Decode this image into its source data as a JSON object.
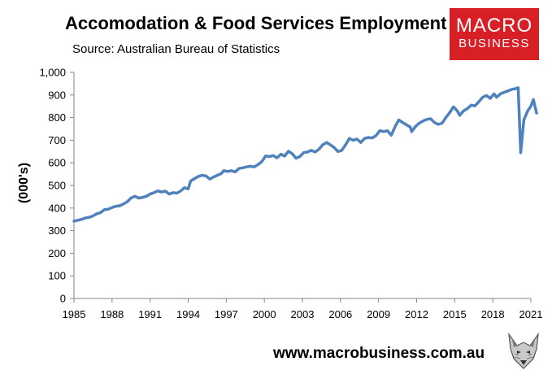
{
  "header": {
    "title": "Accomodation & Food Services Employment",
    "source": "Source: Australian Bureau of Statistics"
  },
  "logo": {
    "line1": "MACRO",
    "line2": "BUSINESS",
    "color": "#d81f26"
  },
  "footer": {
    "website": "www.macrobusiness.com.au"
  },
  "colors": {
    "series": "#4f81bd",
    "axis": "#868686"
  },
  "icons": {
    "wolf": "wolf-icon"
  },
  "chart_data": {
    "type": "line",
    "title": "Accomodation & Food Services Employment",
    "ylabel": "(000's)",
    "xlabel": "",
    "xlim": [
      1985,
      2021
    ],
    "ylim": [
      0,
      1000
    ],
    "grid": false,
    "legend": "none",
    "x_ticks": [
      "1985",
      "1988",
      "1991",
      "1994",
      "1997",
      "2000",
      "2003",
      "2006",
      "2009",
      "2012",
      "2015",
      "2018",
      "2021"
    ],
    "y_ticks": [
      "0",
      "100",
      "200",
      "300",
      "400",
      "500",
      "600",
      "700",
      "800",
      "900",
      "1,000"
    ],
    "series": [
      {
        "color": "#4f81bd",
        "points": [
          [
            1985.0,
            342
          ],
          [
            1985.3,
            346
          ],
          [
            1985.6,
            350
          ],
          [
            1985.9,
            356
          ],
          [
            1986.2,
            359
          ],
          [
            1986.5,
            365
          ],
          [
            1986.8,
            375
          ],
          [
            1987.1,
            380
          ],
          [
            1987.4,
            393
          ],
          [
            1987.7,
            395
          ],
          [
            1988.0,
            402
          ],
          [
            1988.3,
            408
          ],
          [
            1988.6,
            410
          ],
          [
            1988.9,
            418
          ],
          [
            1989.2,
            428
          ],
          [
            1989.5,
            445
          ],
          [
            1989.8,
            452
          ],
          [
            1990.1,
            444
          ],
          [
            1990.4,
            447
          ],
          [
            1990.7,
            452
          ],
          [
            1991.0,
            462
          ],
          [
            1991.3,
            468
          ],
          [
            1991.6,
            476
          ],
          [
            1991.9,
            471
          ],
          [
            1992.2,
            475
          ],
          [
            1992.5,
            462
          ],
          [
            1992.8,
            468
          ],
          [
            1993.1,
            466
          ],
          [
            1993.4,
            475
          ],
          [
            1993.7,
            490
          ],
          [
            1994.0,
            485
          ],
          [
            1994.2,
            520
          ],
          [
            1994.5,
            530
          ],
          [
            1994.8,
            540
          ],
          [
            1995.1,
            545
          ],
          [
            1995.4,
            542
          ],
          [
            1995.7,
            528
          ],
          [
            1996.0,
            537
          ],
          [
            1996.3,
            545
          ],
          [
            1996.6,
            552
          ],
          [
            1996.8,
            565
          ],
          [
            1997.1,
            562
          ],
          [
            1997.4,
            565
          ],
          [
            1997.7,
            560
          ],
          [
            1998.0,
            575
          ],
          [
            1998.3,
            578
          ],
          [
            1998.6,
            582
          ],
          [
            1998.9,
            585
          ],
          [
            1999.2,
            582
          ],
          [
            1999.5,
            592
          ],
          [
            1999.8,
            605
          ],
          [
            2000.1,
            630
          ],
          [
            2000.4,
            628
          ],
          [
            2000.7,
            632
          ],
          [
            2001.0,
            622
          ],
          [
            2001.3,
            638
          ],
          [
            2001.6,
            630
          ],
          [
            2001.9,
            651
          ],
          [
            2002.2,
            640
          ],
          [
            2002.5,
            620
          ],
          [
            2002.8,
            628
          ],
          [
            2003.1,
            645
          ],
          [
            2003.4,
            648
          ],
          [
            2003.7,
            655
          ],
          [
            2004.0,
            648
          ],
          [
            2004.3,
            660
          ],
          [
            2004.6,
            680
          ],
          [
            2004.9,
            690
          ],
          [
            2005.2,
            680
          ],
          [
            2005.5,
            668
          ],
          [
            2005.8,
            650
          ],
          [
            2006.1,
            655
          ],
          [
            2006.4,
            680
          ],
          [
            2006.7,
            708
          ],
          [
            2007.0,
            700
          ],
          [
            2007.3,
            705
          ],
          [
            2007.6,
            690
          ],
          [
            2007.9,
            708
          ],
          [
            2008.2,
            712
          ],
          [
            2008.5,
            710
          ],
          [
            2008.8,
            720
          ],
          [
            2009.1,
            742
          ],
          [
            2009.4,
            738
          ],
          [
            2009.7,
            742
          ],
          [
            2010.0,
            722
          ],
          [
            2010.3,
            760
          ],
          [
            2010.6,
            790
          ],
          [
            2010.9,
            778
          ],
          [
            2011.2,
            768
          ],
          [
            2011.5,
            758
          ],
          [
            2011.6,
            738
          ],
          [
            2011.9,
            760
          ],
          [
            2012.2,
            775
          ],
          [
            2012.5,
            785
          ],
          [
            2012.8,
            792
          ],
          [
            2013.1,
            795
          ],
          [
            2013.4,
            778
          ],
          [
            2013.7,
            770
          ],
          [
            2014.0,
            775
          ],
          [
            2014.3,
            800
          ],
          [
            2014.6,
            822
          ],
          [
            2014.9,
            848
          ],
          [
            2015.2,
            830
          ],
          [
            2015.4,
            810
          ],
          [
            2015.7,
            830
          ],
          [
            2016.0,
            840
          ],
          [
            2016.3,
            855
          ],
          [
            2016.6,
            852
          ],
          [
            2016.9,
            870
          ],
          [
            2017.2,
            890
          ],
          [
            2017.5,
            898
          ],
          [
            2017.8,
            885
          ],
          [
            2018.1,
            905
          ],
          [
            2018.3,
            890
          ],
          [
            2018.6,
            905
          ],
          [
            2018.9,
            912
          ],
          [
            2019.2,
            918
          ],
          [
            2019.5,
            925
          ],
          [
            2019.8,
            928
          ],
          [
            2020.0,
            932
          ],
          [
            2020.2,
            645
          ],
          [
            2020.45,
            790
          ],
          [
            2020.75,
            830
          ],
          [
            2021.0,
            850
          ],
          [
            2021.2,
            880
          ],
          [
            2021.45,
            820
          ]
        ]
      }
    ]
  }
}
